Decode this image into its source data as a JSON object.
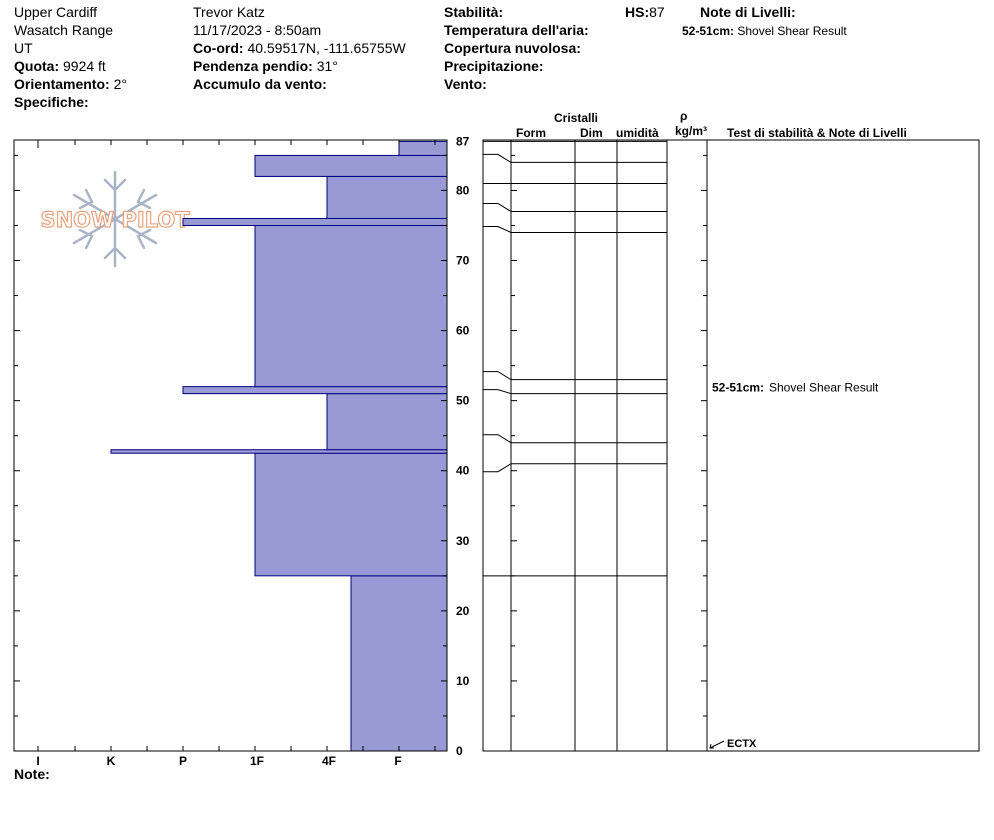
{
  "header": {
    "location": "Upper Cardiff",
    "range": "Wasatch Range",
    "state": "UT",
    "elevation_label": "Quota:",
    "elevation": "9924 ft",
    "aspect_label": "Orientamento:",
    "aspect": "2°",
    "specifics_label": "Specifiche:",
    "observer": "Trevor Katz",
    "datetime": "11/17/2023 - 8:50am",
    "coord_label": "Co-ord:",
    "coord": "40.59517N, -111.65755W",
    "slope_label": "Pendenza pendio:",
    "slope": "31°",
    "wind_loading_label": "Accumulo da vento:",
    "stability_label": "Stabilità:",
    "air_temp_label": "Temperatura dell'aria:",
    "sky_label": "Copertura nuvolosa:",
    "precip_label": "Precipitazione:",
    "wind_label": "Vento:",
    "hs_label": "HS:",
    "hs": "87",
    "layer_notes_label": "Note di Livelli:",
    "layer_note_depth": "52-51cm:",
    "layer_note_text": "Shovel Shear Result"
  },
  "columns": {
    "crystals": "Cristalli",
    "form": "Form",
    "size": "Dim",
    "moisture": "umidità",
    "rho": "ρ",
    "density_unit": "kg/m³",
    "stability_notes": "Test di stabilità & Note di Livelli"
  },
  "footer": {
    "note_label": "Note:"
  },
  "logo": {
    "text": "SNOW PILOT",
    "icon": "snowflake-icon"
  },
  "colors": {
    "hardness_fill": "#9999d6",
    "hardness_stroke": "#00007f"
  },
  "chart_data": {
    "type": "bar",
    "orientation": "horizontal",
    "x_axis_categories": [
      "I",
      "K",
      "P",
      "1F",
      "4F",
      "F"
    ],
    "y_ticks": [
      0,
      10,
      20,
      30,
      40,
      50,
      60,
      70,
      80,
      87
    ],
    "ylim": [
      0,
      87
    ],
    "hs": 87,
    "hardness_layers": [
      {
        "bottom": 0,
        "top": 25,
        "hardness": "4F-"
      },
      {
        "bottom": 25,
        "top": 42.5,
        "hardness": "1F"
      },
      {
        "bottom": 42.5,
        "top": 43,
        "hardness": "K"
      },
      {
        "bottom": 43,
        "top": 51,
        "hardness": "4F"
      },
      {
        "bottom": 51,
        "top": 52,
        "hardness": "P"
      },
      {
        "bottom": 52,
        "top": 75,
        "hardness": "1F"
      },
      {
        "bottom": 75,
        "top": 76,
        "hardness": "P"
      },
      {
        "bottom": 76,
        "top": 82,
        "hardness": "4F"
      },
      {
        "bottom": 82,
        "top": 85,
        "hardness": "1F"
      },
      {
        "bottom": 85,
        "top": 87,
        "hardness": "F"
      }
    ],
    "layer_boundaries_cm": [
      25,
      41,
      44,
      51,
      53,
      74,
      77,
      81,
      84,
      87
    ],
    "stability_notes": [
      {
        "depth": "52-51cm:",
        "text": "Shovel Shear Result",
        "y": 51
      },
      {
        "depth": "",
        "text": "ECTX",
        "y": 0
      }
    ]
  }
}
